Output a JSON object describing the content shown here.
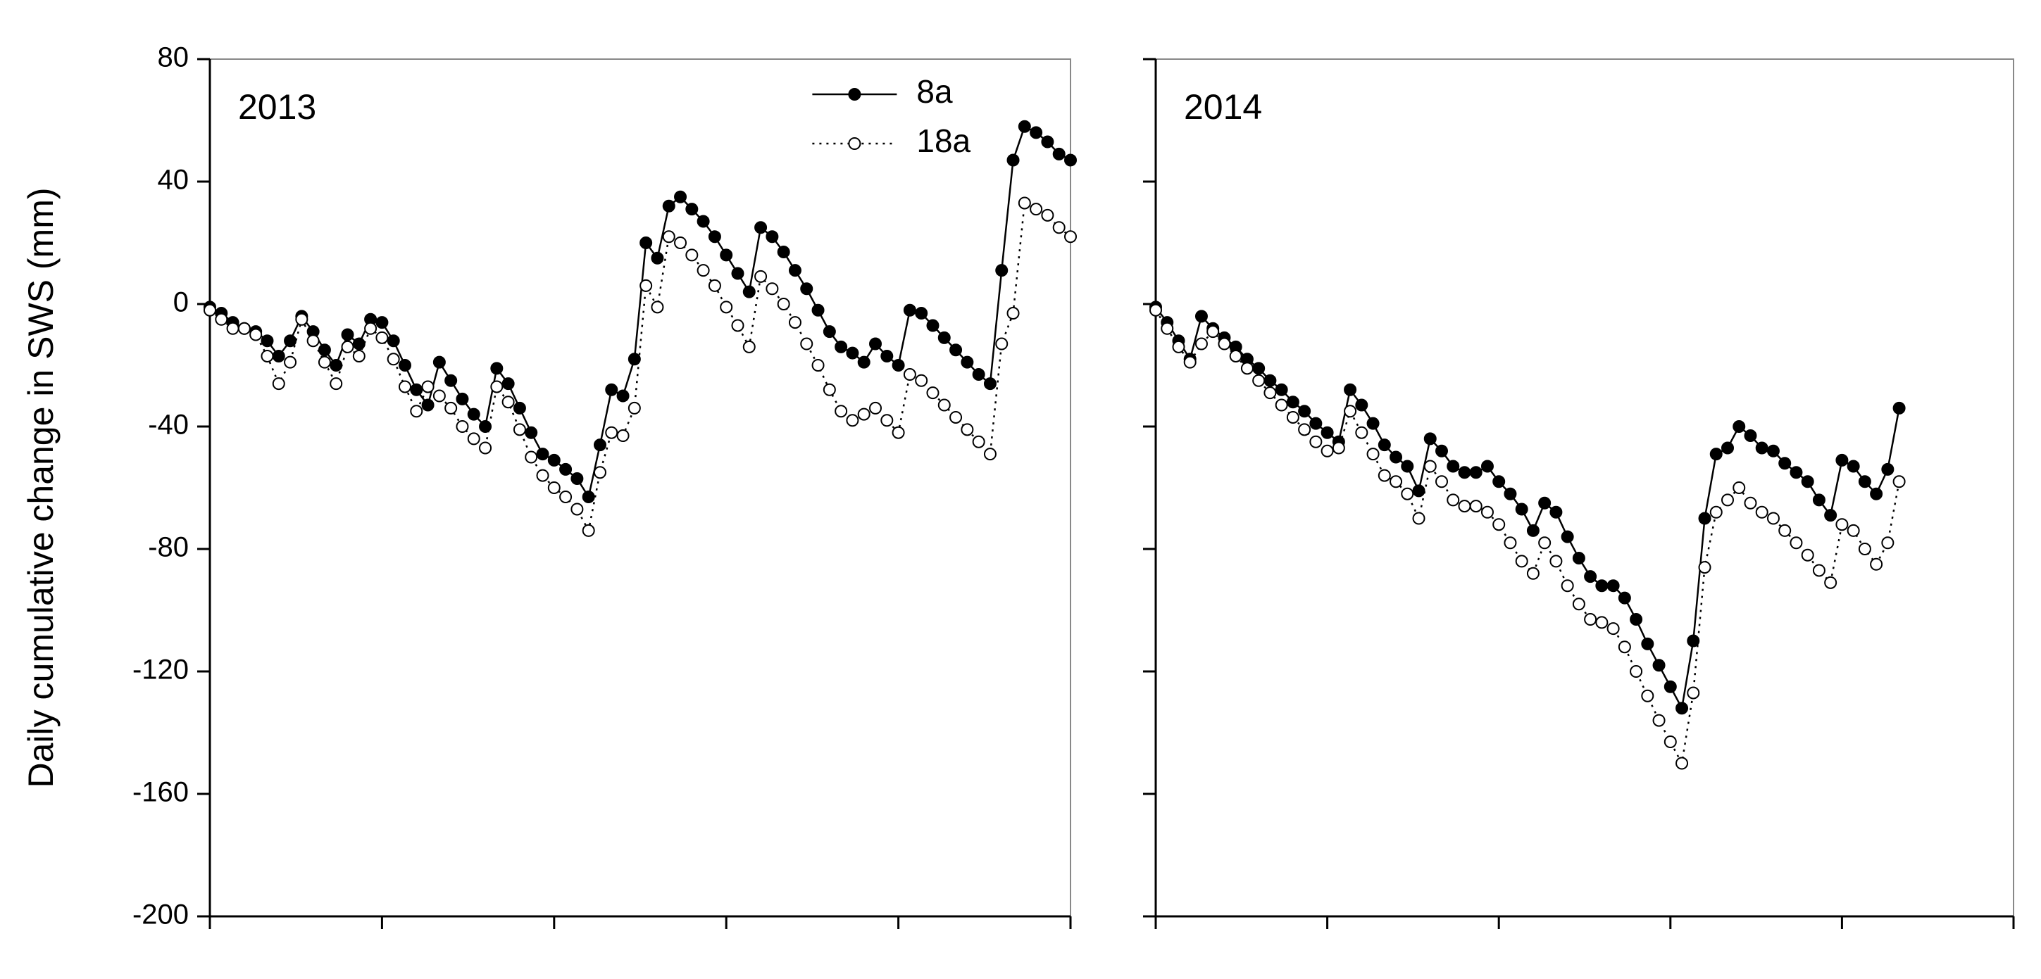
{
  "chart_data": [
    {
      "type": "line",
      "title": "2013",
      "ylabel": "Daily cumulative change in SWS (mm)",
      "x": [
        0,
        2,
        4,
        6,
        8,
        10,
        12,
        14,
        16,
        18,
        20,
        22,
        24,
        26,
        28,
        30,
        32,
        34,
        36,
        38,
        40,
        42,
        44,
        46,
        48,
        50,
        52,
        54,
        56,
        58,
        60,
        62,
        64,
        66,
        68,
        70,
        72,
        74,
        76,
        78,
        80,
        82,
        84,
        86,
        88,
        90,
        92,
        94,
        96,
        98,
        100,
        102,
        104,
        106,
        108,
        110,
        112,
        114,
        116,
        118,
        120,
        122,
        124,
        126,
        128,
        130,
        132,
        134,
        136,
        138,
        140,
        142,
        144,
        146,
        148,
        150
      ],
      "xlim": [
        0,
        150
      ],
      "xticks": [
        0,
        30,
        60,
        90,
        120,
        150
      ],
      "show_xticklabels": false,
      "ylim": [
        -200,
        80
      ],
      "yticks": [
        -200,
        -160,
        -120,
        -80,
        -40,
        0,
        40,
        80
      ],
      "show_yticklabels": true,
      "legend": "upper center",
      "series": [
        {
          "name": "8a",
          "color": "#000000",
          "marker_fill": "#000000",
          "linestyle": "solid",
          "values": [
            -1,
            -3,
            -6,
            -8,
            -9,
            -12,
            -17,
            -12,
            -4,
            -9,
            -15,
            -20,
            -10,
            -13,
            -5,
            -6,
            -12,
            -20,
            -28,
            -33,
            -19,
            -25,
            -31,
            -36,
            -40,
            -21,
            -26,
            -34,
            -42,
            -49,
            -51,
            -54,
            -57,
            -63,
            -46,
            -28,
            -30,
            -18,
            20,
            15,
            32,
            35,
            31,
            27,
            22,
            16,
            10,
            4,
            25,
            22,
            17,
            11,
            5,
            -2,
            -9,
            -14,
            -16,
            -19,
            -13,
            -17,
            -20,
            -2,
            -3,
            -7,
            -11,
            -15,
            -19,
            -23,
            -26,
            11,
            47,
            58,
            56,
            53,
            49,
            47
          ]
        },
        {
          "name": "18a",
          "color": "#000000",
          "marker_fill": "#ffffff",
          "linestyle": "dotted",
          "values": [
            -2,
            -5,
            -8,
            -8,
            -10,
            -17,
            -26,
            -19,
            -5,
            -12,
            -19,
            -26,
            -14,
            -17,
            -8,
            -11,
            -18,
            -27,
            -35,
            -27,
            -30,
            -34,
            -40,
            -44,
            -47,
            -27,
            -32,
            -41,
            -50,
            -56,
            -60,
            -63,
            -67,
            -74,
            -55,
            -42,
            -43,
            -34,
            6,
            -1,
            22,
            20,
            16,
            11,
            6,
            -1,
            -7,
            -14,
            9,
            5,
            0,
            -6,
            -13,
            -20,
            -28,
            -35,
            -38,
            -36,
            -34,
            -38,
            -42,
            -23,
            -25,
            -29,
            -33,
            -37,
            -41,
            -45,
            -49,
            -13,
            -3,
            33,
            31,
            29,
            25,
            22
          ]
        }
      ]
    },
    {
      "type": "line",
      "title": "2014",
      "x": [
        0,
        2,
        4,
        6,
        8,
        10,
        12,
        14,
        16,
        18,
        20,
        22,
        24,
        26,
        28,
        30,
        32,
        34,
        36,
        38,
        40,
        42,
        44,
        46,
        48,
        50,
        52,
        54,
        56,
        58,
        60,
        62,
        64,
        66,
        68,
        70,
        72,
        74,
        76,
        78,
        80,
        82,
        84,
        86,
        88,
        90,
        92,
        94,
        96,
        98,
        100,
        102,
        104,
        106,
        108,
        110,
        112,
        114,
        116,
        118,
        120,
        122,
        124,
        126,
        128,
        130
      ],
      "xlim": [
        0,
        150
      ],
      "xticks": [
        0,
        30,
        60,
        90,
        120,
        150
      ],
      "show_xticklabels": false,
      "ylim": [
        -200,
        80
      ],
      "yticks": [
        -200,
        -160,
        -120,
        -80,
        -40,
        0,
        40,
        80
      ],
      "show_yticklabels": false,
      "series": [
        {
          "name": "8a",
          "color": "#000000",
          "marker_fill": "#000000",
          "linestyle": "solid",
          "values": [
            -1,
            -6,
            -12,
            -18,
            -4,
            -8,
            -11,
            -14,
            -18,
            -21,
            -25,
            -28,
            -32,
            -35,
            -39,
            -42,
            -45,
            -28,
            -33,
            -39,
            -46,
            -50,
            -53,
            -61,
            -44,
            -48,
            -53,
            -55,
            -55,
            -53,
            -58,
            -62,
            -67,
            -74,
            -65,
            -68,
            -76,
            -83,
            -89,
            -92,
            -92,
            -96,
            -103,
            -111,
            -118,
            -125,
            -132,
            -110,
            -70,
            -49,
            -47,
            -40,
            -43,
            -47,
            -48,
            -52,
            -55,
            -58,
            -64,
            -69,
            -51,
            -53,
            -58,
            -62,
            -54,
            -34
          ]
        },
        {
          "name": "18a",
          "color": "#000000",
          "marker_fill": "#ffffff",
          "linestyle": "dotted",
          "values": [
            -2,
            -8,
            -14,
            -19,
            -13,
            -9,
            -13,
            -17,
            -21,
            -25,
            -29,
            -33,
            -37,
            -41,
            -45,
            -48,
            -47,
            -35,
            -42,
            -49,
            -56,
            -58,
            -62,
            -70,
            -53,
            -58,
            -64,
            -66,
            -66,
            -68,
            -72,
            -78,
            -84,
            -88,
            -78,
            -84,
            -92,
            -98,
            -103,
            -104,
            -106,
            -112,
            -120,
            -128,
            -136,
            -143,
            -150,
            -127,
            -86,
            -68,
            -64,
            -60,
            -65,
            -68,
            -70,
            -74,
            -78,
            -82,
            -87,
            -91,
            -72,
            -74,
            -80,
            -85,
            -78,
            -58
          ]
        }
      ]
    }
  ]
}
